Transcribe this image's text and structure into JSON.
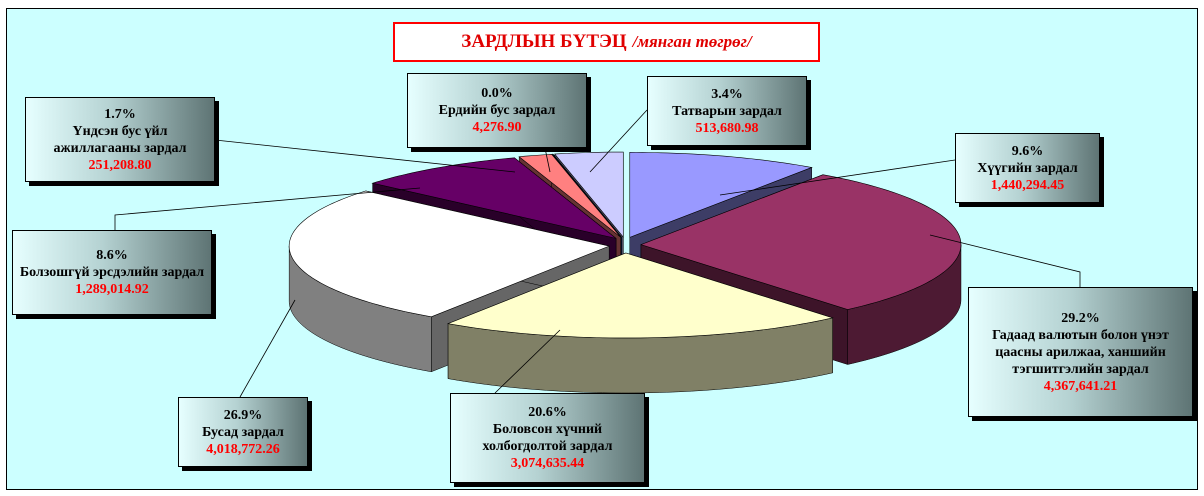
{
  "chart_data": {
    "type": "pie",
    "title": "ЗАРДЛЫН БҮТЭЦ",
    "subtitle": "/мянган төгрөг/",
    "categories": [
      "Хүүгийн зардал",
      "Гадаад валютын болон үнэт цаасны арилжаа, ханшийн тэгшитгэлийн зардал",
      "Боловсон хүчний холбогдолтой зардал",
      "Бусад зардал",
      "Болзошгүй эрсдэлийн зардал",
      "Үндсэн бус үйл ажиллагааны зардал",
      "Ердийн бус зардал",
      "Татварын зардал"
    ],
    "values": [
      1440294.45,
      4367641.21,
      3074635.44,
      4018772.26,
      1289014.92,
      251208.8,
      4276.9,
      513680.98
    ],
    "value_labels": [
      "1,440,294.45",
      "4,367,641.21",
      "3,074,635.44",
      "4,018,772.26",
      "1,289,014.92",
      "251,208.80",
      "4,276.90",
      "513,680.98"
    ],
    "percentages": [
      9.6,
      29.2,
      20.6,
      26.9,
      8.6,
      1.7,
      0.0,
      3.4
    ],
    "percentage_labels": [
      "9.6%",
      "29.2%",
      "20.6%",
      "26.9%",
      "8.6%",
      "1.7%",
      "0.0%",
      "3.4%"
    ],
    "colors": [
      "#9999ff",
      "#993366",
      "#ffffcc",
      "#ffffff",
      "#660066",
      "#ff8080",
      "#0066cc",
      "#ccccff"
    ]
  }
}
